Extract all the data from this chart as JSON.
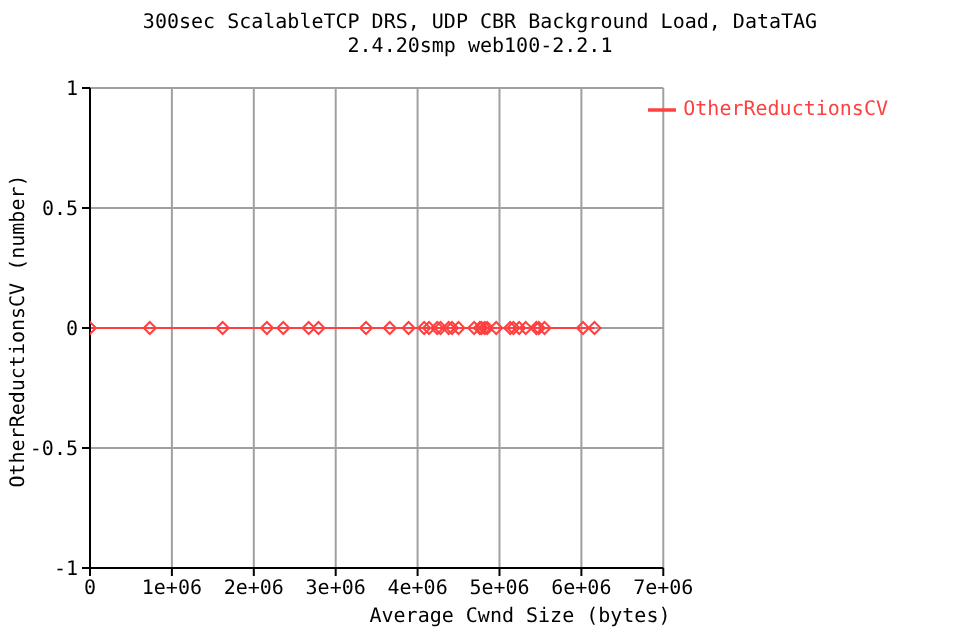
{
  "chart_data": {
    "type": "line",
    "title": "300sec ScalableTCP DRS, UDP CBR Background Load, DataTAG",
    "subtitle": "2.4.20smp web100-2.2.1",
    "xlabel": "Average Cwnd Size (bytes)",
    "ylabel": "OtherReductionsCV (number)",
    "x": [
      0,
      730000,
      1620000,
      2160000,
      2360000,
      2670000,
      2790000,
      3370000,
      3660000,
      3890000,
      4080000,
      4140000,
      4240000,
      4280000,
      4380000,
      4420000,
      4500000,
      4690000,
      4760000,
      4780000,
      4820000,
      4850000,
      4960000,
      5130000,
      5170000,
      5240000,
      5320000,
      5450000,
      5480000,
      5550000,
      6020000,
      6160000
    ],
    "series": [
      {
        "name": "OtherReductionsCV",
        "color": "#ff4040",
        "values": [
          0,
          0,
          0,
          0,
          0,
          0,
          0,
          0,
          0,
          0,
          0,
          0,
          0,
          0,
          0,
          0,
          0,
          0,
          0,
          0,
          0,
          0,
          0,
          0,
          0,
          0,
          0,
          0,
          0,
          0,
          0,
          0
        ]
      }
    ],
    "xlim": [
      0,
      7000000
    ],
    "xticks": [
      0,
      {
        "value": 1000000,
        "label": "1e+06"
      },
      {
        "value": 2000000,
        "label": "2e+06"
      },
      {
        "value": 3000000,
        "label": "3e+06"
      },
      {
        "value": 4000000,
        "label": "4e+06"
      },
      {
        "value": 5000000,
        "label": "5e+06"
      },
      {
        "value": 6000000,
        "label": "6e+06"
      },
      {
        "value": 7000000,
        "label": "7e+06"
      }
    ],
    "ylim": [
      -1,
      1
    ],
    "yticks": [
      -1,
      -0.5,
      0,
      0.5,
      1
    ],
    "grid": true,
    "legend": "top right",
    "marker": "diamond",
    "line_style": "solid"
  }
}
